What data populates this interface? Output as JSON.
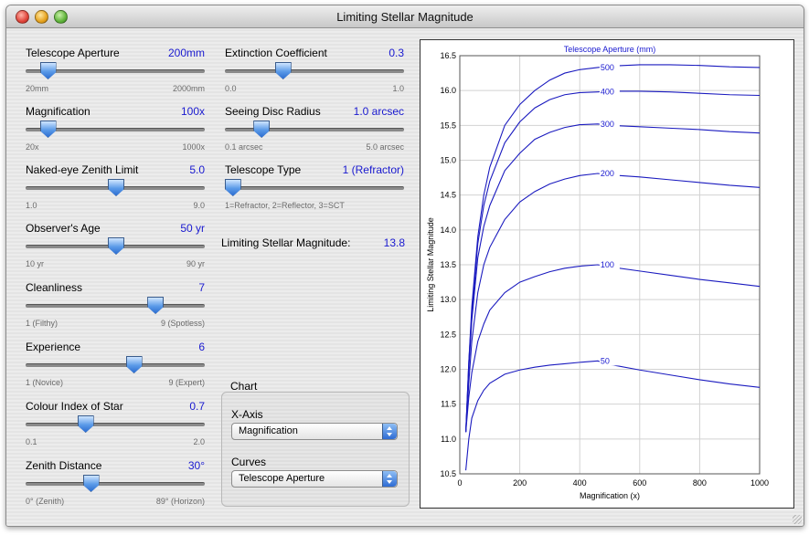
{
  "window": {
    "title": "Limiting Stellar Magnitude"
  },
  "controls": [
    {
      "name": "telescope-aperture",
      "label": "Telescope Aperture",
      "value": "200mm",
      "min_label": "20mm",
      "max_label": "2000mm",
      "fraction": 0.12
    },
    {
      "name": "magnification",
      "label": "Magnification",
      "value": "100x",
      "min_label": "20x",
      "max_label": "1000x",
      "fraction": 0.12
    },
    {
      "name": "naked-eye-zenith-limit",
      "label": "Naked-eye Zenith Limit",
      "value": "5.0",
      "min_label": "1.0",
      "max_label": "9.0",
      "fraction": 0.5
    },
    {
      "name": "observers-age",
      "label": "Observer's Age",
      "value": "50 yr",
      "min_label": "10 yr",
      "max_label": "90 yr",
      "fraction": 0.5
    },
    {
      "name": "cleanliness",
      "label": "Cleanliness",
      "value": "7",
      "min_label": "1 (Filthy)",
      "max_label": "9 (Spotless)",
      "fraction": 0.72
    },
    {
      "name": "experience",
      "label": "Experience",
      "value": "6",
      "min_label": "1 (Novice)",
      "max_label": "9 (Expert)",
      "fraction": 0.6
    },
    {
      "name": "colour-index-of-star",
      "label": "Colour Index of Star",
      "value": "0.7",
      "min_label": "0.1",
      "max_label": "2.0",
      "fraction": 0.33
    },
    {
      "name": "zenith-distance",
      "label": "Zenith Distance",
      "value": "30°",
      "min_label": "0° (Zenith)",
      "max_label": "89° (Horizon)",
      "fraction": 0.36
    },
    {
      "name": "extinction-coefficient",
      "label": "Extinction Coefficient",
      "value": "0.3",
      "min_label": "0.0",
      "max_label": "1.0",
      "fraction": 0.32
    },
    {
      "name": "seeing-disc-radius",
      "label": "Seeing Disc Radius",
      "value": "1.0 arcsec",
      "min_label": "0.1 arcsec",
      "max_label": "5.0 arcsec",
      "fraction": 0.2
    },
    {
      "name": "telescope-type",
      "label": "Telescope Type",
      "value": "1 (Refractor)",
      "min_label": "1=Refractor, 2=Reflector, 3=SCT",
      "max_label": "",
      "fraction": 0.04
    }
  ],
  "result": {
    "label": "Limiting Stellar Magnitude:",
    "value": "13.8"
  },
  "chart_group": {
    "title": "Chart",
    "x_axis_label": "X-Axis",
    "x_axis_selected": "Magnification",
    "curves_label": "Curves",
    "curves_selected": "Telescope Aperture"
  },
  "colors": {
    "accent": "#1a1ad0",
    "curve": "#1a1abf"
  },
  "chart_data": {
    "type": "line",
    "title": "",
    "legend_title": "Telescope Aperture (mm)",
    "xlabel": "Magnification (x)",
    "ylabel": "Limiting Stellar Magnitude",
    "xlim": [
      0,
      1000
    ],
    "ylim": [
      10.5,
      16.5
    ],
    "xticks": [
      0,
      200,
      400,
      600,
      800,
      1000
    ],
    "yticks": [
      10.5,
      11.0,
      11.5,
      12.0,
      12.5,
      13.0,
      13.5,
      14.0,
      14.5,
      15.0,
      15.5,
      16.0,
      16.5
    ],
    "grid": true,
    "series": [
      {
        "name": "500",
        "x": [
          20,
          30,
          40,
          60,
          80,
          100,
          150,
          200,
          250,
          300,
          350,
          400,
          460,
          500,
          600,
          700,
          800,
          900,
          1000
        ],
        "y": [
          11.1,
          12.1,
          12.9,
          13.9,
          14.5,
          14.9,
          15.5,
          15.8,
          16.0,
          16.15,
          16.25,
          16.3,
          16.33,
          16.35,
          16.37,
          16.37,
          16.36,
          16.34,
          16.33
        ]
      },
      {
        "name": "400",
        "x": [
          20,
          30,
          40,
          60,
          80,
          100,
          150,
          200,
          250,
          300,
          350,
          400,
          460,
          500,
          600,
          700,
          800,
          900,
          1000
        ],
        "y": [
          11.1,
          12.1,
          12.8,
          13.8,
          14.35,
          14.7,
          15.25,
          15.55,
          15.75,
          15.87,
          15.94,
          15.97,
          15.98,
          15.99,
          15.99,
          15.98,
          15.96,
          15.94,
          15.93
        ]
      },
      {
        "name": "300",
        "x": [
          20,
          30,
          40,
          60,
          80,
          100,
          150,
          200,
          250,
          300,
          350,
          400,
          460,
          500,
          600,
          700,
          800,
          900,
          1000
        ],
        "y": [
          11.1,
          12.0,
          12.7,
          13.6,
          14.05,
          14.35,
          14.85,
          15.1,
          15.3,
          15.4,
          15.47,
          15.51,
          15.52,
          15.5,
          15.48,
          15.46,
          15.44,
          15.41,
          15.39
        ]
      },
      {
        "name": "200",
        "x": [
          20,
          30,
          40,
          60,
          80,
          100,
          150,
          200,
          250,
          300,
          350,
          400,
          460,
          500,
          600,
          700,
          800,
          900,
          1000
        ],
        "y": [
          11.1,
          11.8,
          12.4,
          13.1,
          13.5,
          13.75,
          14.15,
          14.4,
          14.55,
          14.66,
          14.73,
          14.78,
          14.81,
          14.79,
          14.76,
          14.72,
          14.68,
          14.64,
          14.61
        ]
      },
      {
        "name": "100",
        "x": [
          20,
          30,
          40,
          60,
          80,
          100,
          150,
          200,
          250,
          300,
          350,
          400,
          460,
          500,
          600,
          700,
          800,
          900,
          1000
        ],
        "y": [
          11.1,
          11.6,
          11.95,
          12.4,
          12.65,
          12.85,
          13.1,
          13.25,
          13.33,
          13.4,
          13.45,
          13.48,
          13.5,
          13.47,
          13.41,
          13.35,
          13.29,
          13.24,
          13.19
        ]
      },
      {
        "name": "50",
        "x": [
          20,
          30,
          40,
          60,
          80,
          100,
          150,
          200,
          250,
          300,
          350,
          400,
          460,
          500,
          600,
          700,
          800,
          900,
          1000
        ],
        "y": [
          10.55,
          11.0,
          11.3,
          11.55,
          11.7,
          11.8,
          11.93,
          11.99,
          12.03,
          12.06,
          12.08,
          12.1,
          12.12,
          12.07,
          11.99,
          11.92,
          11.85,
          11.79,
          11.74
        ]
      }
    ]
  }
}
